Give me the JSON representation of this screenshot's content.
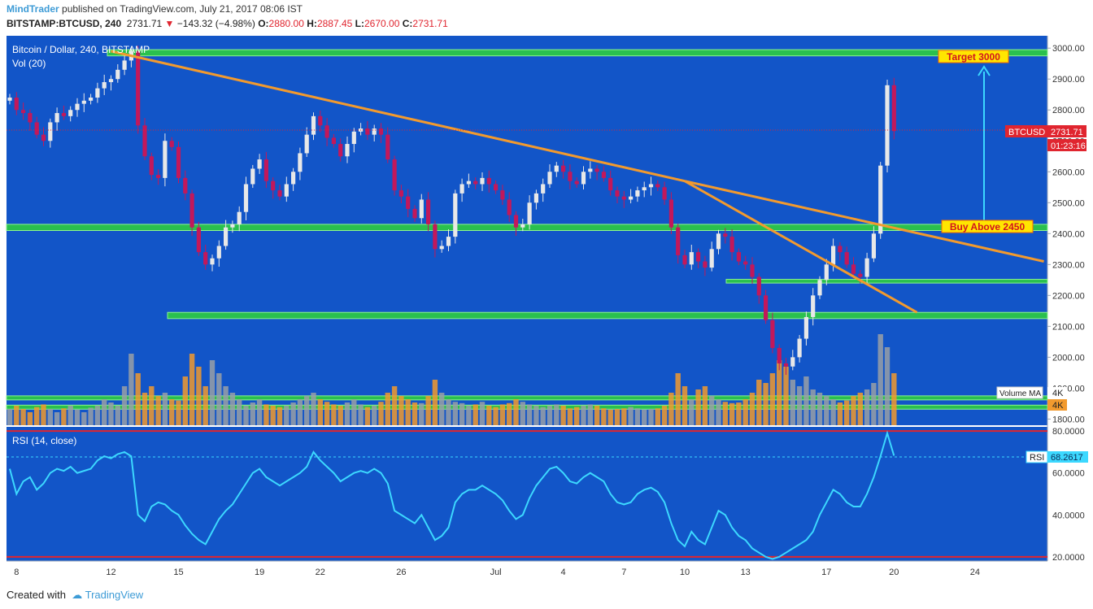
{
  "header": {
    "author": "MindTrader",
    "published": " published on TradingView.com, July 21, 2017 08:06 IST",
    "symbol": "BITSTAMP:BTCUSD, 240",
    "last": "2731.71",
    "change": "−143.32 (−4.98%)",
    "o_label": "O:",
    "o_val": "2880.00",
    "h_label": "H:",
    "h_val": "2887.45",
    "l_label": "L:",
    "l_val": "2670.00",
    "c_label": "C:",
    "c_val": "2731.71"
  },
  "pane_labels": {
    "main": "Bitcoin / Dollar, 240, BITSTAMP",
    "vol": "Vol (20)",
    "rsi": "RSI (14, close)"
  },
  "annotations": {
    "target": "Target 3000",
    "buy": "Buy Above 2450"
  },
  "price_tag": {
    "symbol": "BTCUSD",
    "value": "2731.71",
    "countdown": "01:23:16"
  },
  "vol_tag": {
    "label": "Volume MA",
    "value": "4K",
    "value2": "4K"
  },
  "rsi_tag": {
    "label": "RSI",
    "value": "68.2617"
  },
  "footer": {
    "created": "Created with",
    "brand": "TradingView"
  },
  "colors": {
    "bg": "#1255c8",
    "up": "#e8e8e8",
    "down": "#c2185b",
    "zone": "#2ecc40",
    "trend": "#f29a2e",
    "rsi": "#3cd8ff",
    "arrow": "#3cd8ff"
  },
  "chart_data": {
    "type": "candlestick",
    "price_axis": {
      "ticks": [
        "3000.00",
        "2900.00",
        "2800.00",
        "2700.00",
        "2600.00",
        "2500.00",
        "2400.00",
        "2300.00",
        "2200.00",
        "2100.00",
        "2000.00",
        "1900.00",
        "1800.00"
      ],
      "range": [
        1780,
        3040
      ]
    },
    "rsi_axis": {
      "ticks": [
        "80.0000",
        "60.0000",
        "40.0000",
        "20.0000"
      ],
      "range": [
        18,
        82
      ],
      "bands": [
        80,
        20
      ]
    },
    "x_ticks": [
      "8",
      "12",
      "15",
      "19",
      "22",
      "26",
      "Jul",
      "4",
      "7",
      "10",
      "13",
      "17",
      "20",
      "24"
    ],
    "x_tick_slots": [
      1,
      15,
      25,
      37,
      46,
      58,
      72,
      82,
      91,
      100,
      109,
      121,
      131,
      143
    ],
    "closes": [
      2840,
      2800,
      2790,
      2760,
      2720,
      2700,
      2760,
      2790,
      2780,
      2800,
      2820,
      2830,
      2840,
      2870,
      2890,
      2900,
      2930,
      2960,
      2990,
      2750,
      2650,
      2590,
      2580,
      2700,
      2680,
      2580,
      2530,
      2420,
      2340,
      2300,
      2320,
      2360,
      2420,
      2430,
      2470,
      2560,
      2610,
      2640,
      2570,
      2540,
      2520,
      2560,
      2600,
      2660,
      2720,
      2780,
      2750,
      2710,
      2690,
      2650,
      2690,
      2730,
      2740,
      2720,
      2740,
      2720,
      2640,
      2540,
      2520,
      2480,
      2450,
      2510,
      2430,
      2350,
      2360,
      2390,
      2530,
      2560,
      2570,
      2560,
      2580,
      2560,
      2540,
      2510,
      2460,
      2420,
      2430,
      2500,
      2530,
      2560,
      2600,
      2620,
      2600,
      2570,
      2560,
      2600,
      2610,
      2600,
      2580,
      2540,
      2520,
      2510,
      2520,
      2540,
      2550,
      2560,
      2550,
      2510,
      2420,
      2330,
      2300,
      2340,
      2310,
      2290,
      2350,
      2400,
      2390,
      2340,
      2310,
      2300,
      2260,
      2200,
      2120,
      2030,
      1980,
      1970,
      2000,
      2060,
      2130,
      2200,
      2250,
      2300,
      2360,
      2340,
      2300,
      2270,
      2260,
      2320,
      2400,
      2620,
      2880,
      2731.71
    ],
    "volumes": [
      2.5,
      3,
      2.5,
      2,
      2.8,
      3.2,
      2.5,
      2,
      2.6,
      3,
      2.4,
      2,
      2.7,
      3,
      4,
      3.5,
      3,
      6,
      11,
      8,
      5,
      6,
      4.5,
      5,
      4,
      3.8,
      7.5,
      11,
      9,
      6,
      10,
      8,
      6,
      5,
      4,
      3,
      3.5,
      4,
      3.2,
      3,
      2.8,
      3,
      3.5,
      4,
      4.5,
      5,
      4,
      3.6,
      3.2,
      3,
      3.5,
      4,
      3.2,
      2.8,
      3,
      3.6,
      5,
      6,
      4.5,
      4,
      3.5,
      3.4,
      4.5,
      7,
      5,
      4,
      3.6,
      3.4,
      3,
      3.2,
      3.6,
      3,
      2.8,
      3.2,
      3.4,
      4,
      3.6,
      3.2,
      3,
      2.8,
      3,
      3.2,
      3,
      2.6,
      2.8,
      3,
      3.2,
      3,
      2.6,
      2.4,
      2.5,
      2.6,
      2.8,
      2.6,
      2.4,
      2.5,
      2.6,
      3,
      5,
      8,
      6,
      4,
      5.5,
      6,
      4.5,
      4,
      3.6,
      3.4,
      3.5,
      4,
      5,
      7,
      6.5,
      8,
      10,
      9,
      7,
      6,
      7.5,
      5.5,
      5,
      4.5,
      4,
      3.5,
      3.8,
      4.5,
      5,
      5.5,
      6.5,
      14,
      12,
      8
    ],
    "rsi": [
      62,
      50,
      56,
      58,
      52,
      55,
      60,
      62,
      61,
      63,
      60,
      61,
      62,
      66,
      68,
      67,
      69,
      70,
      68,
      40,
      37,
      44,
      46,
      45,
      42,
      40,
      35,
      31,
      28,
      26,
      32,
      38,
      42,
      45,
      50,
      55,
      60,
      62,
      58,
      56,
      54,
      56,
      58,
      60,
      63,
      70,
      66,
      63,
      60,
      56,
      58,
      60,
      61,
      60,
      62,
      60,
      55,
      42,
      40,
      38,
      36,
      40,
      34,
      28,
      30,
      34,
      46,
      50,
      52,
      52,
      54,
      52,
      50,
      47,
      42,
      38,
      40,
      48,
      54,
      58,
      62,
      63,
      60,
      56,
      55,
      58,
      60,
      58,
      56,
      50,
      46,
      45,
      46,
      50,
      52,
      53,
      51,
      46,
      36,
      28,
      25,
      32,
      28,
      26,
      34,
      42,
      40,
      34,
      30,
      28,
      24,
      22,
      20,
      19,
      20,
      22,
      24,
      26,
      28,
      32,
      40,
      46,
      52,
      50,
      46,
      44,
      44,
      50,
      58,
      68,
      79,
      68.26
    ]
  }
}
